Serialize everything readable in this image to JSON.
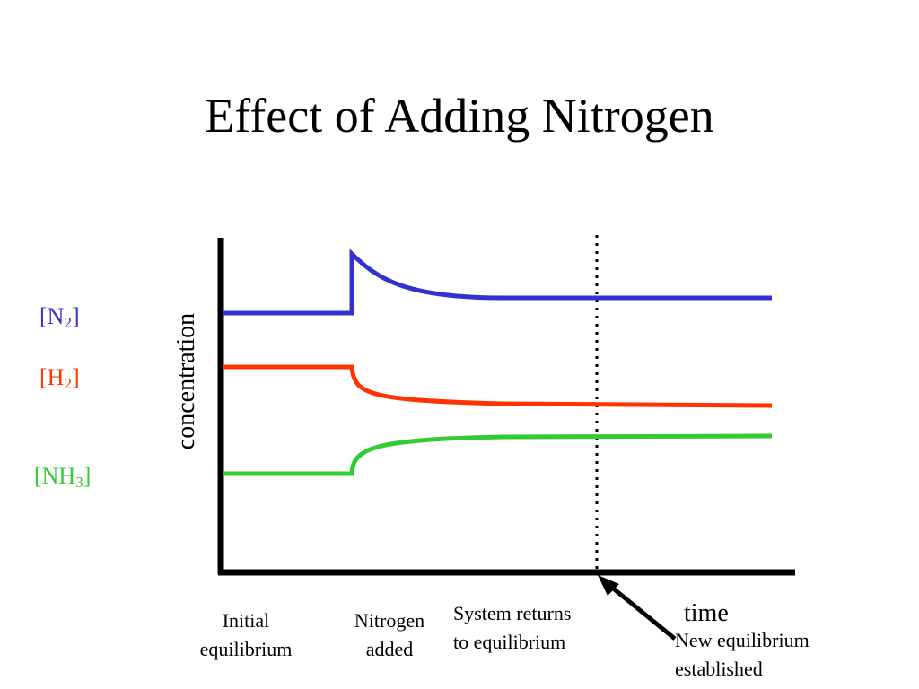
{
  "title": "Effect of Adding Nitrogen",
  "species": [
    {
      "prefix": "[N",
      "sub": "2",
      "suffix": "]",
      "color": "#3333cc"
    },
    {
      "prefix": "[H",
      "sub": "2",
      "suffix": "]",
      "color": "#ff3300"
    },
    {
      "prefix": "[NH",
      "sub": "3",
      "suffix": "]",
      "color": "#33cc33"
    }
  ],
  "axes": {
    "ylabel": "concentration",
    "xlabel": "time"
  },
  "events": {
    "initial": [
      "Initial",
      "equilibrium"
    ],
    "added": [
      "Nitrogen",
      "added"
    ],
    "returns": [
      "System returns",
      "to equilibrium"
    ],
    "new_eq": [
      "New equilibrium",
      "established"
    ]
  },
  "colors": {
    "axis": "#000000",
    "n2": "#3333cc",
    "h2": "#ff3300",
    "nh3": "#33cc33"
  }
}
